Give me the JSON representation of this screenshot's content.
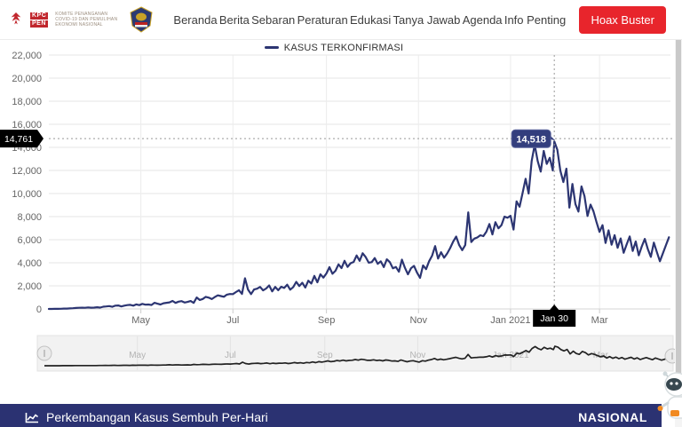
{
  "header": {
    "logo_kpcpen": {
      "acronym_lines": [
        "KPC",
        "PEN"
      ],
      "org_lines": [
        "KOMITE PENANGANAN",
        "COVID-19 DAN PEMULIHAN",
        "EKONOMI NASIONAL"
      ]
    },
    "nav_items": [
      "Beranda",
      "Berita",
      "Sebaran",
      "Peraturan",
      "Edukasi",
      "Tanya Jawab",
      "Agenda",
      "Info Penting"
    ],
    "hoax_buster_label": "Hoax Buster"
  },
  "chart_data": {
    "type": "line",
    "title": "",
    "legend": [
      {
        "label": "KASUS TERKONFIRMASI",
        "color": "#2c3572"
      }
    ],
    "ylim": [
      0,
      22000
    ],
    "y_ticks": [
      {
        "v": 0,
        "l": "0"
      },
      {
        "v": 2000,
        "l": "2,000"
      },
      {
        "v": 4000,
        "l": "4,000"
      },
      {
        "v": 6000,
        "l": "6,000"
      },
      {
        "v": 8000,
        "l": "8,000"
      },
      {
        "v": 10000,
        "l": "10,000"
      },
      {
        "v": 12000,
        "l": "12,000"
      },
      {
        "v": 14000,
        "l": "14,000"
      },
      {
        "v": 16000,
        "l": "16,000"
      },
      {
        "v": 18000,
        "l": "18,000"
      },
      {
        "v": 20000,
        "l": "20,000"
      },
      {
        "v": 22000,
        "l": "22,000"
      }
    ],
    "x_range_days": [
      0,
      412
    ],
    "x_ticks": [
      {
        "d": 61,
        "l": "May"
      },
      {
        "d": 122,
        "l": "Jul"
      },
      {
        "d": 184,
        "l": "Sep"
      },
      {
        "d": 245,
        "l": "Nov"
      },
      {
        "d": 306,
        "l": "Jan 2021"
      },
      {
        "d": 365,
        "l": "Mar"
      }
    ],
    "crosshair": {
      "x_day": 335,
      "x_label": "Jan 30",
      "y_value": 14761,
      "y_label": "14,761"
    },
    "tooltip": {
      "day": 335,
      "value": 14518,
      "label": "14,518"
    },
    "series": [
      {
        "name": "KASUS TERKONFIRMASI",
        "color": "#2c3572",
        "points": [
          [
            0,
            2
          ],
          [
            2,
            2
          ],
          [
            4,
            6
          ],
          [
            6,
            10
          ],
          [
            8,
            19
          ],
          [
            10,
            30
          ],
          [
            12,
            34
          ],
          [
            14,
            48
          ],
          [
            16,
            60
          ],
          [
            18,
            81
          ],
          [
            20,
            100
          ],
          [
            22,
            107
          ],
          [
            24,
            103
          ],
          [
            26,
            130
          ],
          [
            28,
            109
          ],
          [
            30,
            114
          ],
          [
            32,
            149
          ],
          [
            34,
            113
          ],
          [
            36,
            196
          ],
          [
            38,
            218
          ],
          [
            40,
            247
          ],
          [
            42,
            185
          ],
          [
            44,
            282
          ],
          [
            46,
            297
          ],
          [
            48,
            214
          ],
          [
            50,
            283
          ],
          [
            52,
            327
          ],
          [
            54,
            357
          ],
          [
            56,
            283
          ],
          [
            58,
            396
          ],
          [
            60,
            327
          ],
          [
            62,
            436
          ],
          [
            64,
            367
          ],
          [
            66,
            387
          ],
          [
            68,
            338
          ],
          [
            70,
            533
          ],
          [
            72,
            457
          ],
          [
            74,
            387
          ],
          [
            76,
            489
          ],
          [
            78,
            529
          ],
          [
            80,
            568
          ],
          [
            82,
            693
          ],
          [
            84,
            526
          ],
          [
            86,
            634
          ],
          [
            88,
            680
          ],
          [
            90,
            557
          ],
          [
            92,
            609
          ],
          [
            94,
            684
          ],
          [
            96,
            526
          ],
          [
            98,
            989
          ],
          [
            100,
            775
          ],
          [
            102,
            859
          ],
          [
            104,
            1043
          ],
          [
            106,
            979
          ],
          [
            108,
            857
          ],
          [
            110,
            1031
          ],
          [
            112,
            1178
          ],
          [
            114,
            1113
          ],
          [
            116,
            1051
          ],
          [
            118,
            1240
          ],
          [
            120,
            1293
          ],
          [
            122,
            1282
          ],
          [
            124,
            1462
          ],
          [
            126,
            1624
          ],
          [
            128,
            1301
          ],
          [
            130,
            2657
          ],
          [
            132,
            1671
          ],
          [
            134,
            1282
          ],
          [
            136,
            1681
          ],
          [
            138,
            1752
          ],
          [
            140,
            1904
          ],
          [
            142,
            1606
          ],
          [
            144,
            1766
          ],
          [
            146,
            2040
          ],
          [
            148,
            1525
          ],
          [
            150,
            1904
          ],
          [
            152,
            1624
          ],
          [
            154,
            1922
          ],
          [
            156,
            1815
          ],
          [
            158,
            2098
          ],
          [
            160,
            1673
          ],
          [
            162,
            1893
          ],
          [
            164,
            2345
          ],
          [
            166,
            1981
          ],
          [
            168,
            2266
          ],
          [
            170,
            1855
          ],
          [
            172,
            2447
          ],
          [
            174,
            2197
          ],
          [
            176,
            2858
          ],
          [
            178,
            2306
          ],
          [
            180,
            3003
          ],
          [
            182,
            2719
          ],
          [
            184,
            3075
          ],
          [
            186,
            3622
          ],
          [
            188,
            3046
          ],
          [
            190,
            3307
          ],
          [
            192,
            3861
          ],
          [
            194,
            3537
          ],
          [
            196,
            4168
          ],
          [
            198,
            3635
          ],
          [
            200,
            3963
          ],
          [
            202,
            4071
          ],
          [
            204,
            4634
          ],
          [
            206,
            4168
          ],
          [
            208,
            4823
          ],
          [
            210,
            4494
          ],
          [
            212,
            4007
          ],
          [
            214,
            4056
          ],
          [
            216,
            4411
          ],
          [
            218,
            3906
          ],
          [
            220,
            4125
          ],
          [
            222,
            3622
          ],
          [
            224,
            4301
          ],
          [
            226,
            4056
          ],
          [
            228,
            3520
          ],
          [
            230,
            3635
          ],
          [
            232,
            3222
          ],
          [
            234,
            4267
          ],
          [
            236,
            3565
          ],
          [
            238,
            3000
          ],
          [
            240,
            3520
          ],
          [
            242,
            3732
          ],
          [
            244,
            3143
          ],
          [
            246,
            2696
          ],
          [
            248,
            3770
          ],
          [
            250,
            3444
          ],
          [
            252,
            4127
          ],
          [
            254,
            4617
          ],
          [
            256,
            5444
          ],
          [
            258,
            4360
          ],
          [
            260,
            4917
          ],
          [
            262,
            4442
          ],
          [
            264,
            4798
          ],
          [
            266,
            5272
          ],
          [
            268,
            5828
          ],
          [
            270,
            6267
          ],
          [
            272,
            5533
          ],
          [
            274,
            5092
          ],
          [
            276,
            5533
          ],
          [
            278,
            8369
          ],
          [
            280,
            5803
          ],
          [
            282,
            6089
          ],
          [
            284,
            6189
          ],
          [
            286,
            6388
          ],
          [
            288,
            6310
          ],
          [
            290,
            6689
          ],
          [
            292,
            7354
          ],
          [
            294,
            6453
          ],
          [
            296,
            7514
          ],
          [
            298,
            6982
          ],
          [
            300,
            7259
          ],
          [
            302,
            8002
          ],
          [
            304,
            7903
          ],
          [
            306,
            8072
          ],
          [
            308,
            6877
          ],
          [
            310,
            9321
          ],
          [
            312,
            8854
          ],
          [
            314,
            10047
          ],
          [
            316,
            11278
          ],
          [
            318,
            10000
          ],
          [
            320,
            12818
          ],
          [
            322,
            14224
          ],
          [
            324,
            12818
          ],
          [
            326,
            11900
          ],
          [
            328,
            13695
          ],
          [
            330,
            12568
          ],
          [
            332,
            13094
          ],
          [
            334,
            12001
          ],
          [
            335,
            14518
          ],
          [
            337,
            13802
          ],
          [
            339,
            11984
          ],
          [
            341,
            10994
          ],
          [
            343,
            12156
          ],
          [
            345,
            8776
          ],
          [
            347,
            10829
          ],
          [
            349,
            9086
          ],
          [
            351,
            8435
          ],
          [
            353,
            10614
          ],
          [
            355,
            9775
          ],
          [
            357,
            8054
          ],
          [
            359,
            9039
          ],
          [
            361,
            8465
          ],
          [
            363,
            7533
          ],
          [
            365,
            6680
          ],
          [
            367,
            7264
          ],
          [
            369,
            5712
          ],
          [
            371,
            6808
          ],
          [
            373,
            5560
          ],
          [
            375,
            6389
          ],
          [
            377,
            5297
          ],
          [
            379,
            6107
          ],
          [
            381,
            4860
          ],
          [
            383,
            5589
          ],
          [
            385,
            6279
          ],
          [
            387,
            5020
          ],
          [
            389,
            5846
          ],
          [
            391,
            4644
          ],
          [
            393,
            5414
          ],
          [
            395,
            6070
          ],
          [
            397,
            5190
          ],
          [
            399,
            4508
          ],
          [
            401,
            5744
          ],
          [
            403,
            4933
          ],
          [
            405,
            4127
          ],
          [
            407,
            4821
          ],
          [
            409,
            5523
          ],
          [
            411,
            6208
          ]
        ]
      }
    ],
    "navigator": {
      "line_color": "#222222",
      "tick_labels": [
        "May",
        "Jul",
        "Sep",
        "Nov",
        "Jan 2021",
        "Mar"
      ]
    }
  },
  "bottom_bar": {
    "title": "Perkembangan Kasus Sembuh Per-Hari",
    "region_label": "NASIONAL"
  },
  "colors": {
    "accent_red": "#e8252c",
    "navy": "#2b3272",
    "series": "#2c3572",
    "tooltip_bg": "#333e7d"
  }
}
